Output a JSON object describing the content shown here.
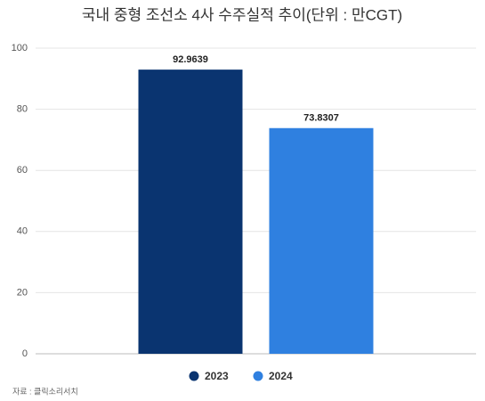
{
  "chart_data": {
    "type": "bar",
    "title": "국내 중형 조선소 4사 수주실적 추이(단위 : 만CGT)",
    "categories": [
      null
    ],
    "series": [
      {
        "name": "2023",
        "color": "#0a3470",
        "values": [
          92.9639
        ]
      },
      {
        "name": "2024",
        "color": "#2f80e0",
        "values": [
          73.8307
        ]
      }
    ],
    "ylim": [
      0,
      100
    ],
    "yticks": [
      0,
      20,
      40,
      60,
      80,
      100
    ],
    "grid": true,
    "legend": "bottom",
    "source": "자료 : 클릭소리서치"
  }
}
